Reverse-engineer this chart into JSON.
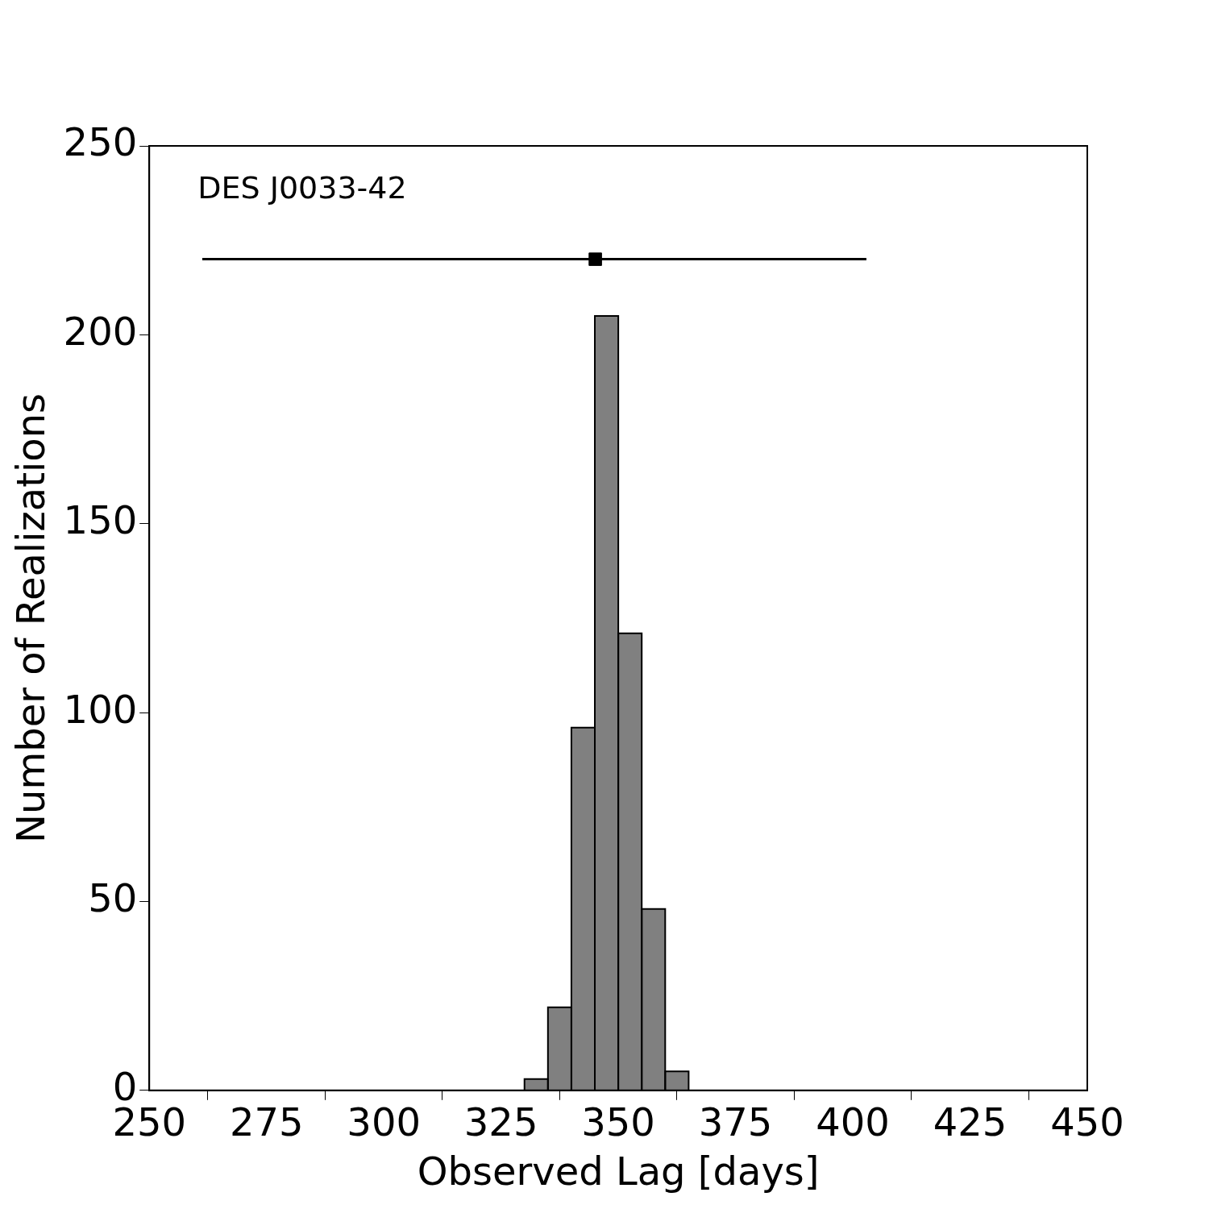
{
  "chart_data": {
    "type": "histogram",
    "xlabel": "Observed Lag [days]",
    "ylabel": "Number of Realizations",
    "annotations": [
      "DES J0033-42"
    ],
    "bins": [
      330,
      335,
      340,
      345,
      350,
      355,
      360,
      365
    ],
    "values": [
      3,
      22,
      96,
      205,
      121,
      48,
      5
    ],
    "color": "#808080",
    "series": [
      {
        "type": "scatter",
        "x": [
          345.1
        ],
        "values": [
          220
        ],
        "xerrors": [
          [
            261.3,
            402.9
          ]
        ],
        "color": "#000000",
        "marker": "square"
      }
    ],
    "xlim": [
      250,
      450
    ],
    "xticks": [
      250,
      275,
      300,
      325,
      350,
      375,
      400,
      425,
      450
    ],
    "ylim": [
      0,
      250
    ],
    "yticks": [
      0,
      50,
      100,
      150,
      200,
      250
    ],
    "grid": false,
    "legend": false
  }
}
